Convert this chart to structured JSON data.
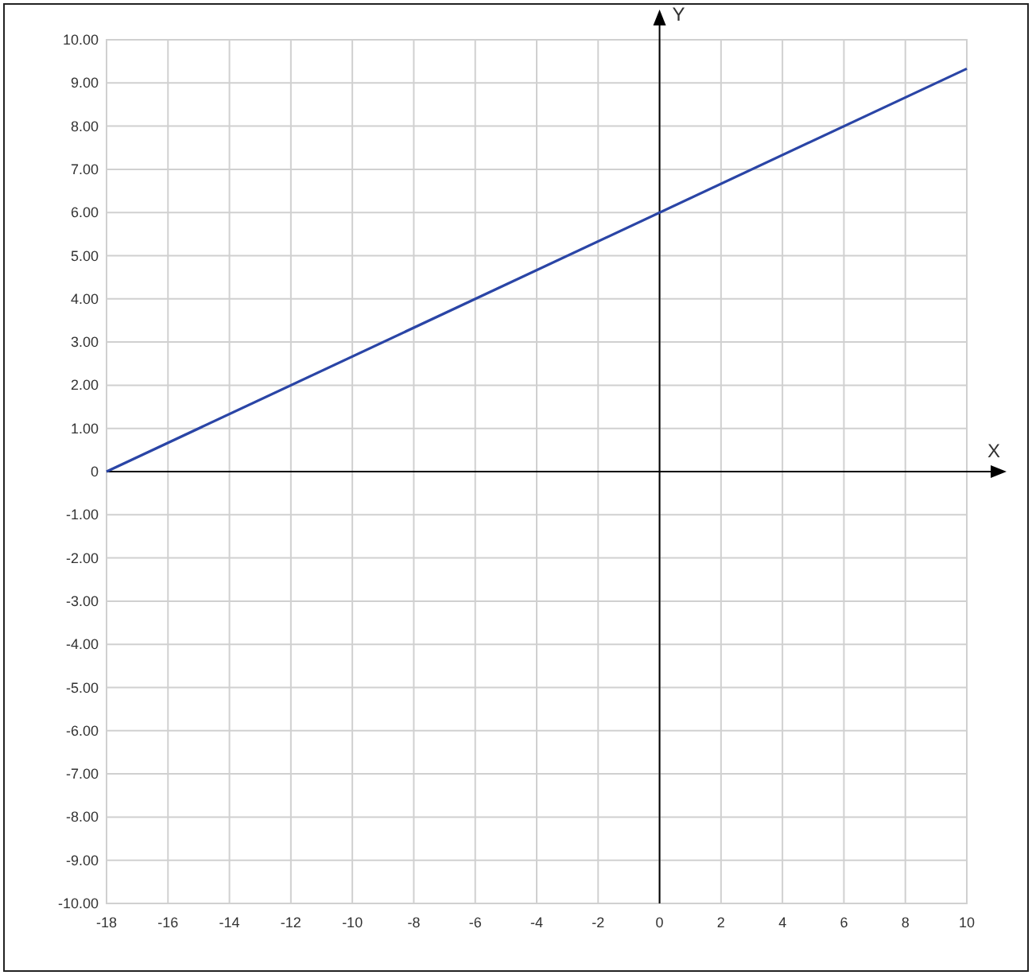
{
  "chart_data": {
    "type": "line",
    "xlabel": "X",
    "ylabel": "Y",
    "x": [
      -18,
      10
    ],
    "series": [
      {
        "color": "#2a45a6",
        "values": [
          0,
          9.33
        ]
      }
    ],
    "xlim": [
      -18,
      10
    ],
    "ylim": [
      -10,
      10
    ],
    "xticks": [
      -18,
      -16,
      -14,
      -12,
      -10,
      -8,
      -6,
      -4,
      -2,
      0,
      2,
      4,
      6,
      8,
      10
    ],
    "yticks": [
      {
        "value": -10,
        "label": "-10.00"
      },
      {
        "value": -9,
        "label": "-9.00"
      },
      {
        "value": -8,
        "label": "-8.00"
      },
      {
        "value": -7,
        "label": "-7.00"
      },
      {
        "value": -6,
        "label": "-6.00"
      },
      {
        "value": -5,
        "label": "-5.00"
      },
      {
        "value": -4,
        "label": "-4.00"
      },
      {
        "value": -3,
        "label": "-3.00"
      },
      {
        "value": -2,
        "label": "-2.00"
      },
      {
        "value": -1,
        "label": "-1.00"
      },
      0,
      {
        "value": 1,
        "label": "1.00"
      },
      {
        "value": 2,
        "label": "2.00"
      },
      {
        "value": 3,
        "label": "3.00"
      },
      {
        "value": 4,
        "label": "4.00"
      },
      {
        "value": 5,
        "label": "5.00"
      },
      {
        "value": 6,
        "label": "6.00"
      },
      {
        "value": 7,
        "label": "7.00"
      },
      {
        "value": 8,
        "label": "8.00"
      },
      {
        "value": 9,
        "label": "9.00"
      },
      {
        "value": 10,
        "label": "10.00"
      }
    ],
    "grid": true,
    "marker": "none",
    "line_style": "solid"
  }
}
